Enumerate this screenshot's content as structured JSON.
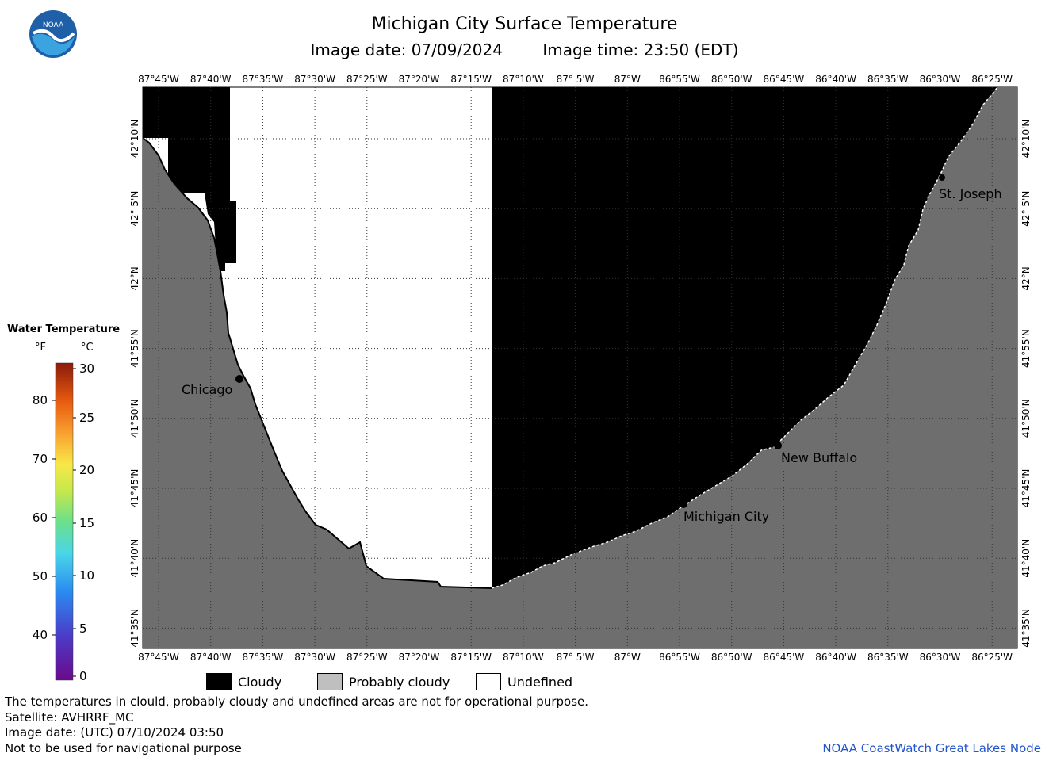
{
  "header": {
    "title": "Michigan City Surface Temperature",
    "image_date": "Image date: 07/09/2024",
    "image_time": "Image time: 23:50 (EDT)"
  },
  "logo": {
    "text": "NOAA",
    "icon": "noaa-logo-icon",
    "colors": [
      "#1f5fa8",
      "#3ba3e0",
      "#ffffff"
    ]
  },
  "map": {
    "lon_labels": [
      "87°45'W",
      "87°40'W",
      "87°35'W",
      "87°30'W",
      "87°25'W",
      "87°20'W",
      "87°15'W",
      "87°10'W",
      "87° 5'W",
      "87°W",
      "86°55'W",
      "86°50'W",
      "86°45'W",
      "86°40'W",
      "86°35'W",
      "86°30'W",
      "86°25'W"
    ],
    "lat_labels": [
      "42°10'N",
      "42° 5'N",
      "42°N",
      "41°55'N",
      "41°50'N",
      "41°45'N",
      "41°40'N",
      "41°35'N"
    ],
    "cities": [
      {
        "name": "Chicago"
      },
      {
        "name": "St. Joseph"
      },
      {
        "name": "New Buffalo"
      },
      {
        "name": "Michigan City"
      }
    ],
    "colors": {
      "cloudy": "#000000",
      "probably_cloudy": "#6e6e6e",
      "undefined": "#ffffff"
    }
  },
  "legend": {
    "title": "Water Temperature",
    "f_label": "°F",
    "c_label": "°C",
    "f_ticks": [
      "80",
      "70",
      "60",
      "50",
      "40"
    ],
    "c_ticks": [
      "30",
      "25",
      "20",
      "15",
      "10",
      "5",
      "0"
    ]
  },
  "key": {
    "cloudy": "Cloudy",
    "probably_cloudy": "Probably cloudy",
    "undefined": "Undefined"
  },
  "notes": {
    "line1": "The temperatures in clould, probably cloudy and undefined areas are not for operational purpose.",
    "line2": "Satellite: AVHRRF_MC",
    "line3": "Image date: (UTC) 07/10/2024  03:50",
    "line4": "Not to be used for navigational purpose",
    "credit": "NOAA CoastWatch Great Lakes Node"
  }
}
